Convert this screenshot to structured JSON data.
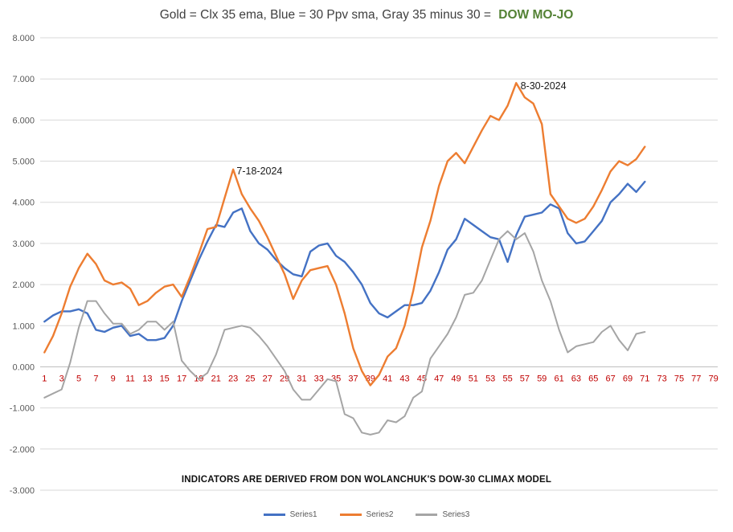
{
  "title": {
    "main": "Gold = Clx 35 ema, Blue = 30 Ppv sma, Gray 35 minus 30 =",
    "highlight": "DOW MO-JO",
    "highlight_color": "#548235"
  },
  "footer": {
    "text": "INDICATORS ARE DERIVED FROM DON WOLANCHUK'S DOW-30 CLIMAX MODEL"
  },
  "legend": {
    "position": "bottom",
    "items": [
      {
        "label": "Series1",
        "color": "#4472C4"
      },
      {
        "label": "Series2",
        "color": "#ED7D31"
      },
      {
        "label": "Series3",
        "color": "#A5A5A5"
      }
    ]
  },
  "chart_data": {
    "type": "line",
    "title": "Gold = Clx 35 ema, Blue = 30 Ppv sma, Gray 35 minus 30 = DOW MO-JO",
    "xlabel": "",
    "ylabel": "",
    "ylim": [
      -3,
      8
    ],
    "x_axis_max": 79,
    "x_start": 1,
    "grid": true,
    "legend_position": "bottom",
    "colors": {
      "grid": "#D9D9D9",
      "axis": "#BFBFBF",
      "tick_label": "#595959",
      "x_tick_label": "#C00000",
      "annotation": "#1a1a1a"
    },
    "y_tick_labels": [
      "8.000",
      "7.000",
      "6.000",
      "5.000",
      "4.000",
      "3.000",
      "2.000",
      "1.000",
      "0.000",
      "-1.000",
      "-2.000",
      "-3.000"
    ],
    "x_tick_labels": [
      "1",
      "3",
      "5",
      "7",
      "9",
      "11",
      "13",
      "15",
      "17",
      "19",
      "21",
      "23",
      "25",
      "27",
      "29",
      "31",
      "33",
      "35",
      "37",
      "39",
      "41",
      "43",
      "45",
      "47",
      "49",
      "51",
      "53",
      "55",
      "57",
      "59",
      "61",
      "63",
      "65",
      "67",
      "69",
      "71",
      "73",
      "75",
      "77",
      "79"
    ],
    "annotations": [
      {
        "text": "7-18-2024",
        "x": 23.4,
        "y": 4.68
      },
      {
        "text": "8-30-2024",
        "x": 56.5,
        "y": 6.75
      }
    ],
    "series": [
      {
        "name": "Series1",
        "color": "#4472C4",
        "width": 2.4,
        "values": [
          1.1,
          1.25,
          1.35,
          1.35,
          1.4,
          1.3,
          0.9,
          0.85,
          0.95,
          1.0,
          0.75,
          0.8,
          0.65,
          0.65,
          0.7,
          1.0,
          1.6,
          2.1,
          2.6,
          3.05,
          3.45,
          3.4,
          3.75,
          3.85,
          3.3,
          3.0,
          2.85,
          2.6,
          2.4,
          2.25,
          2.2,
          2.8,
          2.95,
          3.0,
          2.7,
          2.55,
          2.3,
          2.0,
          1.55,
          1.3,
          1.2,
          1.35,
          1.5,
          1.5,
          1.55,
          1.85,
          2.3,
          2.85,
          3.1,
          3.6,
          3.45,
          3.3,
          3.15,
          3.1,
          2.55,
          3.2,
          3.65,
          3.7,
          3.75,
          3.95,
          3.85,
          3.25,
          3.0,
          3.05,
          3.3,
          3.55,
          4.0,
          4.2,
          4.45,
          4.25,
          4.5
        ]
      },
      {
        "name": "Series2",
        "color": "#ED7D31",
        "width": 2.4,
        "values": [
          0.35,
          0.75,
          1.3,
          1.95,
          2.4,
          2.75,
          2.5,
          2.1,
          2.0,
          2.05,
          1.9,
          1.5,
          1.6,
          1.8,
          1.95,
          2.0,
          1.7,
          2.2,
          2.75,
          3.35,
          3.4,
          4.1,
          4.8,
          4.2,
          3.85,
          3.55,
          3.15,
          2.7,
          2.25,
          1.65,
          2.1,
          2.35,
          2.4,
          2.45,
          2.0,
          1.3,
          0.45,
          -0.1,
          -0.45,
          -0.2,
          0.25,
          0.45,
          1.0,
          1.85,
          2.9,
          3.55,
          4.4,
          5.0,
          5.2,
          4.95,
          5.35,
          5.75,
          6.1,
          6.0,
          6.35,
          6.9,
          6.55,
          6.4,
          5.9,
          4.2,
          3.9,
          3.6,
          3.5,
          3.6,
          3.9,
          4.3,
          4.75,
          5.0,
          4.9,
          5.05,
          5.35
        ]
      },
      {
        "name": "Series3",
        "color": "#A5A5A5",
        "width": 2,
        "values": [
          -0.75,
          -0.65,
          -0.55,
          0.1,
          0.95,
          1.6,
          1.6,
          1.3,
          1.05,
          1.05,
          0.8,
          0.9,
          1.1,
          1.1,
          0.9,
          1.1,
          0.15,
          -0.1,
          -0.3,
          -0.15,
          0.3,
          0.9,
          0.95,
          1.0,
          0.95,
          0.75,
          0.5,
          0.2,
          -0.1,
          -0.55,
          -0.8,
          -0.8,
          -0.55,
          -0.3,
          -0.35,
          -1.15,
          -1.25,
          -1.6,
          -1.65,
          -1.6,
          -1.3,
          -1.35,
          -1.2,
          -0.75,
          -0.6,
          0.2,
          0.5,
          0.8,
          1.2,
          1.75,
          1.8,
          2.1,
          2.6,
          3.1,
          3.3,
          3.1,
          3.25,
          2.8,
          2.1,
          1.6,
          0.9,
          0.35,
          0.5,
          0.55,
          0.6,
          0.85,
          1.0,
          0.65,
          0.4,
          0.8,
          0.85
        ]
      }
    ]
  }
}
